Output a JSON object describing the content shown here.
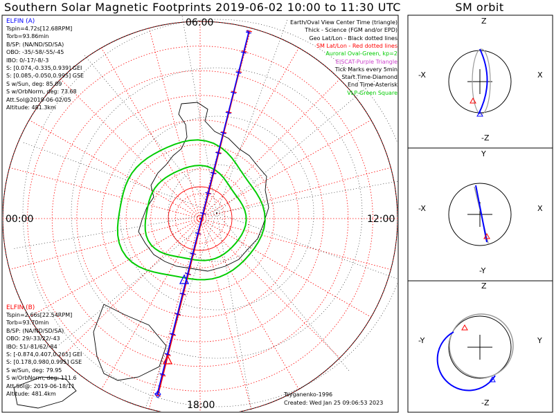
{
  "title": "Southern Solar Magnetic Footprints 2019-06-02 10:00 to 11:30 UTC",
  "sm_title": "SM orbit",
  "colors": {
    "sc_a": "#0000ff",
    "sc_b": "#ff0000",
    "oval": "#00cc00",
    "geo_grid": "#000000",
    "sm_grid": "#ff0000",
    "eiscat": "#cc44cc",
    "vlp": "#00cc00"
  },
  "elfin_a": {
    "name": "ELFIN (A)",
    "lines": [
      "Tspin=4.72s[12.68RPM]",
      "Torb=93.86min",
      "B/SP: (NA/ND/SD/SA)",
      "OBO: -35/-58/-55/-45",
      "IBO: 0/-17/-8/-3",
      "S: [0.074,-0.335,0.939] GEI",
      "S: [0.085,-0.050,0.995] GSE",
      "S w/Sun, deg: 85.09",
      "S w/OrbNorm, deg: 73.68",
      "Att.Sol@2019-06-02/05",
      "Altitude: 481.3km"
    ]
  },
  "elfin_b": {
    "name": "ELFIN (B)",
    "lines": [
      "Tspin=2.66s[22.54RPM]",
      "Torb=93.70min",
      "B/SP: (NA/ND/SD/SA)",
      "OBO: 29/-33/22/-43",
      "IBO: 51/-81/62/-84",
      "S: [-0.874,0.407,0.265] GEI",
      "S: [0.178,0.980,0.995] GSE",
      "S w/Sun, deg: 79.95",
      "S w/OrbNorm, deg: 111.6",
      "Att.Sol@: 2019-06-18/11",
      "Altitude: 481.4km"
    ]
  },
  "legend": [
    {
      "text": "Earth/Oval View Center Time (triangle)",
      "color": "#000000"
    },
    {
      "text": "Thick - Science (FGM and/or EPD)",
      "color": "#000000"
    },
    {
      "text": "Geo Lat/Lon - Black dotted lines",
      "color": "#000000"
    },
    {
      "text": "SM Lat/Lon - Red dotted lines",
      "color": "#ff0000"
    },
    {
      "text": "Auroral Oval-Green, kp=2",
      "color": "#00cc00"
    },
    {
      "text": "EISCAT-Purple Triangle",
      "color": "#cc44cc"
    },
    {
      "text": "Tick Marks every 5min",
      "color": "#000000"
    },
    {
      "text": "Start Time-Diamond",
      "color": "#000000"
    },
    {
      "text": "End Time-Asterisk",
      "color": "#000000"
    },
    {
      "text": "VLP-Green Square",
      "color": "#00cc00"
    }
  ],
  "mlt_labels": {
    "top": "06:00",
    "left": "00:00",
    "right": "12:00",
    "bottom": "18:00"
  },
  "footer": {
    "author": "Tsyganenko-1996",
    "created": "Created: Wed Jan 25 09:06:53 2023"
  },
  "sm_panels": [
    {
      "top": "Z",
      "bottom": "-Z",
      "left": "-X",
      "right": "X"
    },
    {
      "top": "Y",
      "bottom": "-Y",
      "left": "-X",
      "right": "X"
    },
    {
      "top": "Z",
      "bottom": "-Z",
      "left": "-Y",
      "right": "Y"
    }
  ],
  "chart_data": {
    "type": "polar map",
    "projection": "southern hemisphere SM polar view",
    "mlt_ticks": [
      "00:00",
      "06:00",
      "12:00",
      "18:00"
    ],
    "sm_latitude_circles": 8,
    "tracks": [
      {
        "name": "ELFIN (A)",
        "color": "#0000ff",
        "ticks_every_min": 5
      },
      {
        "name": "ELFIN (B)",
        "color": "#ff0000",
        "ticks_every_min": 5
      }
    ],
    "auroral_oval_kp": 2
  }
}
